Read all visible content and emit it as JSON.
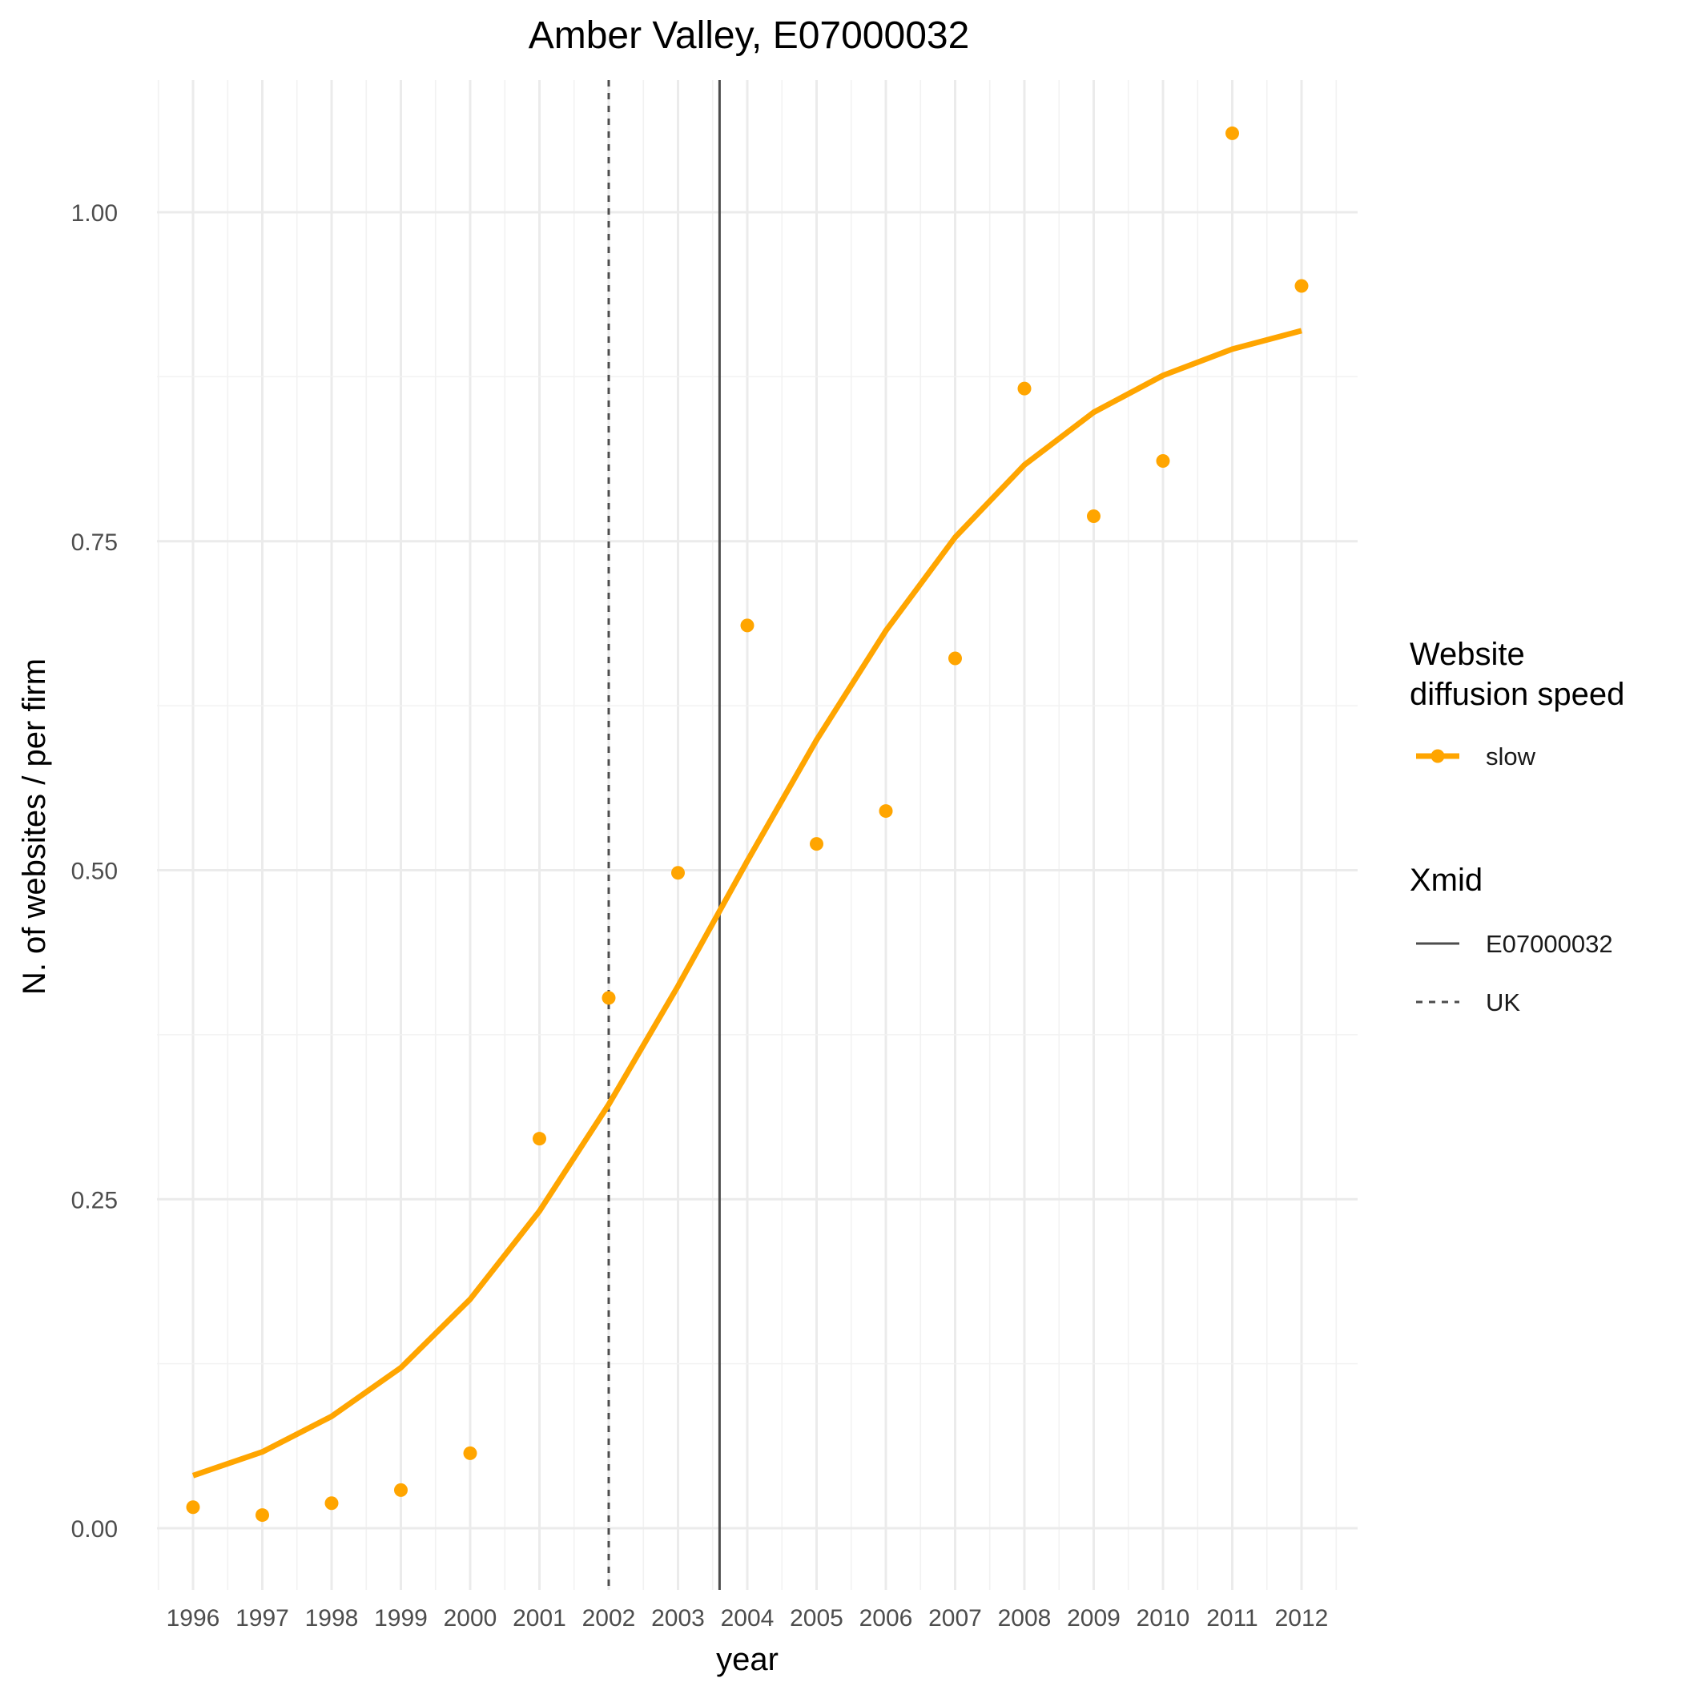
{
  "chart_data": {
    "type": "line",
    "title": "Amber Valley, E07000032",
    "xlabel": "year",
    "ylabel": "N. of websites / per firm",
    "x": [
      1996,
      1997,
      1998,
      1999,
      2000,
      2001,
      2002,
      2003,
      2004,
      2005,
      2006,
      2007,
      2008,
      2009,
      2010,
      2011,
      2012
    ],
    "x_tick_labels": [
      "1996",
      "1997",
      "1998",
      "1999",
      "2000",
      "2001",
      "2002",
      "2003",
      "2004",
      "2005",
      "2006",
      "2007",
      "2008",
      "2009",
      "2010",
      "2011",
      "2012"
    ],
    "y_ticks": [
      0,
      0.25,
      0.5,
      0.75,
      1.0
    ],
    "y_tick_labels": [
      "0.00",
      "0.25",
      "0.50",
      "0.75",
      "1.00"
    ],
    "xlim": [
      1995.5,
      2012.5
    ],
    "ylim": [
      -0.04,
      1.1
    ],
    "grid": true,
    "series": [
      {
        "name": "slow",
        "color": "#FFA500",
        "points": [
          0.016,
          0.01,
          0.019,
          0.029,
          0.057,
          0.296,
          0.403,
          0.498,
          0.686,
          0.52,
          0.545,
          0.661,
          0.866,
          0.769,
          0.811,
          1.06,
          0.944
        ],
        "fitted": [
          0.04,
          0.058,
          0.085,
          0.122,
          0.174,
          0.241,
          0.322,
          0.412,
          0.507,
          0.599,
          0.682,
          0.753,
          0.808,
          0.848,
          0.876,
          0.896,
          0.91
        ]
      }
    ],
    "vlines": [
      {
        "name": "E07000032",
        "x": 2003.6,
        "style": "solid",
        "color": "#4d4d4d"
      },
      {
        "name": "UK",
        "x": 2002.0,
        "style": "dashed",
        "color": "#4d4d4d"
      }
    ],
    "legend": {
      "placement": "right",
      "groups": [
        {
          "title_lines": [
            "Website",
            "diffusion speed"
          ],
          "items": [
            "slow"
          ]
        },
        {
          "title_lines": [
            "Xmid"
          ],
          "items": [
            "E07000032",
            "UK"
          ]
        }
      ]
    }
  }
}
